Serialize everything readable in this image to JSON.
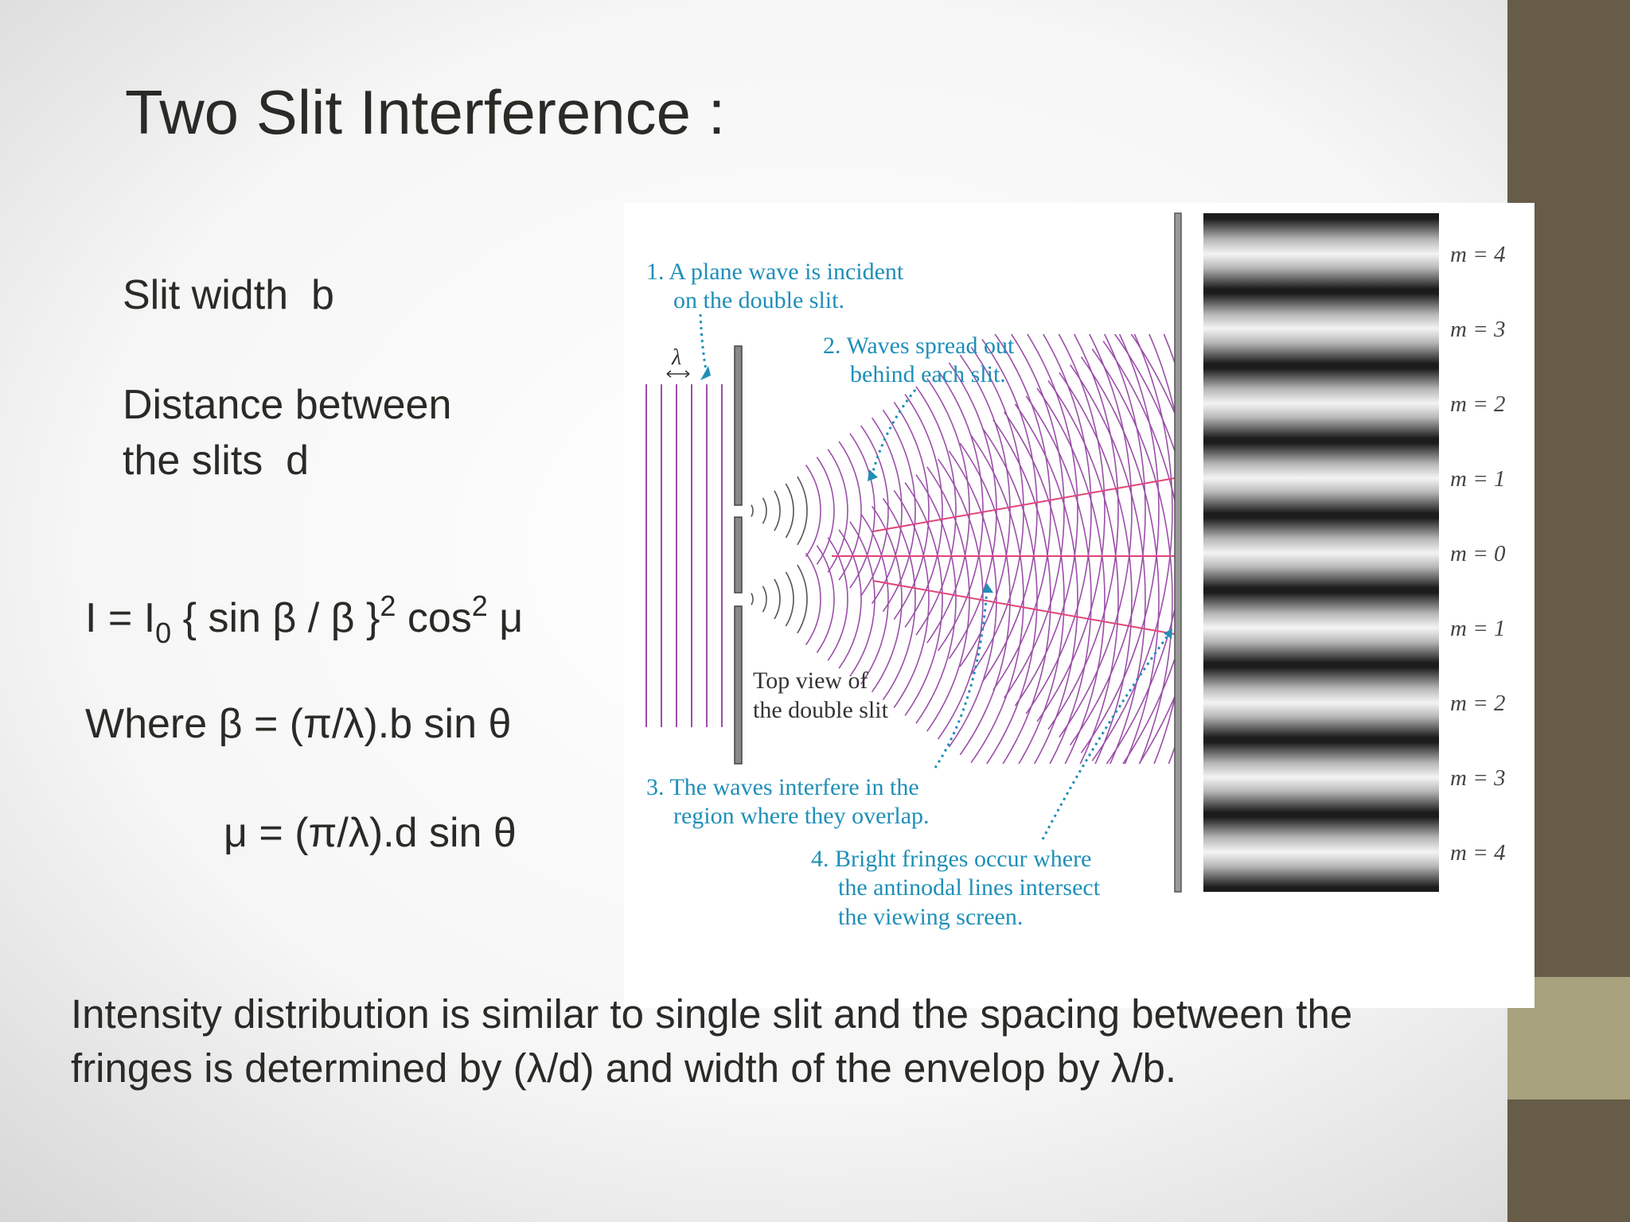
{
  "title": "Two Slit Interference :",
  "parameters": [
    "Slit width  b",
    "Distance between",
    "the slits  d"
  ],
  "formula": {
    "intensity": [
      "I = I",
      "0",
      " { sin β / β }",
      "2",
      " cos",
      "2",
      " μ"
    ],
    "beta": "Where β = (π/λ).b sin θ",
    "mu": "μ = (π/λ).d sin θ"
  },
  "diagram": {
    "lambda": "λ",
    "steps": [
      [
        "1. A plane wave is incident",
        "on the double slit."
      ],
      [
        "2. Waves spread out",
        "behind each slit."
      ],
      [
        "3. The waves interfere in the",
        "region where they overlap."
      ],
      [
        "4. Bright fringes occur where",
        "the antinodal lines intersect",
        "the viewing screen."
      ]
    ],
    "slit_label": [
      "Top view of",
      "the double slit"
    ],
    "orders": [
      "m = 4",
      "m = 3",
      "m = 2",
      "m = 1",
      "m = 0",
      "m = 1",
      "m = 2",
      "m = 3",
      "m = 4"
    ]
  },
  "footer": [
    "Intensity distribution is similar to single slit and the spacing between the",
    "fringes is determined by (λ/d) and width of the envelop by λ/b."
  ]
}
